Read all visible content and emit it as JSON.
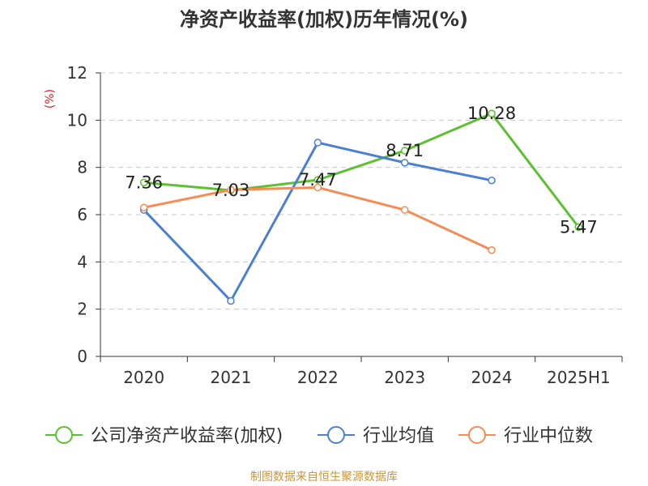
{
  "chart_data": {
    "type": "line",
    "title": "净资产收益率(加权)历年情况(%)",
    "xlabel": "",
    "ylabel": "(%)",
    "categories": [
      "2020",
      "2021",
      "2022",
      "2023",
      "2024",
      "2025H1"
    ],
    "ylim": [
      0,
      12
    ],
    "yticks": [
      0,
      2,
      4,
      6,
      8,
      10,
      12
    ],
    "grid": true,
    "legend_position": "bottom",
    "series": [
      {
        "name": "公司净资产收益率(加权)",
        "color": "#5cc130",
        "values": [
          7.36,
          7.03,
          7.47,
          8.71,
          10.28,
          5.47
        ],
        "data_labels": [
          "7.36",
          "7.03",
          "7.47",
          "8.71",
          "10.28",
          "5.47"
        ]
      },
      {
        "name": "行业均值",
        "color": "#4a7fd4",
        "values": [
          6.2,
          2.35,
          9.05,
          8.2,
          7.45,
          null
        ]
      },
      {
        "name": "行业中位数",
        "color": "#f58b55",
        "values": [
          6.3,
          7.05,
          7.15,
          6.2,
          4.5,
          null
        ]
      }
    ]
  },
  "footer": {
    "source": "制图数据来自恒生聚源数据库"
  }
}
